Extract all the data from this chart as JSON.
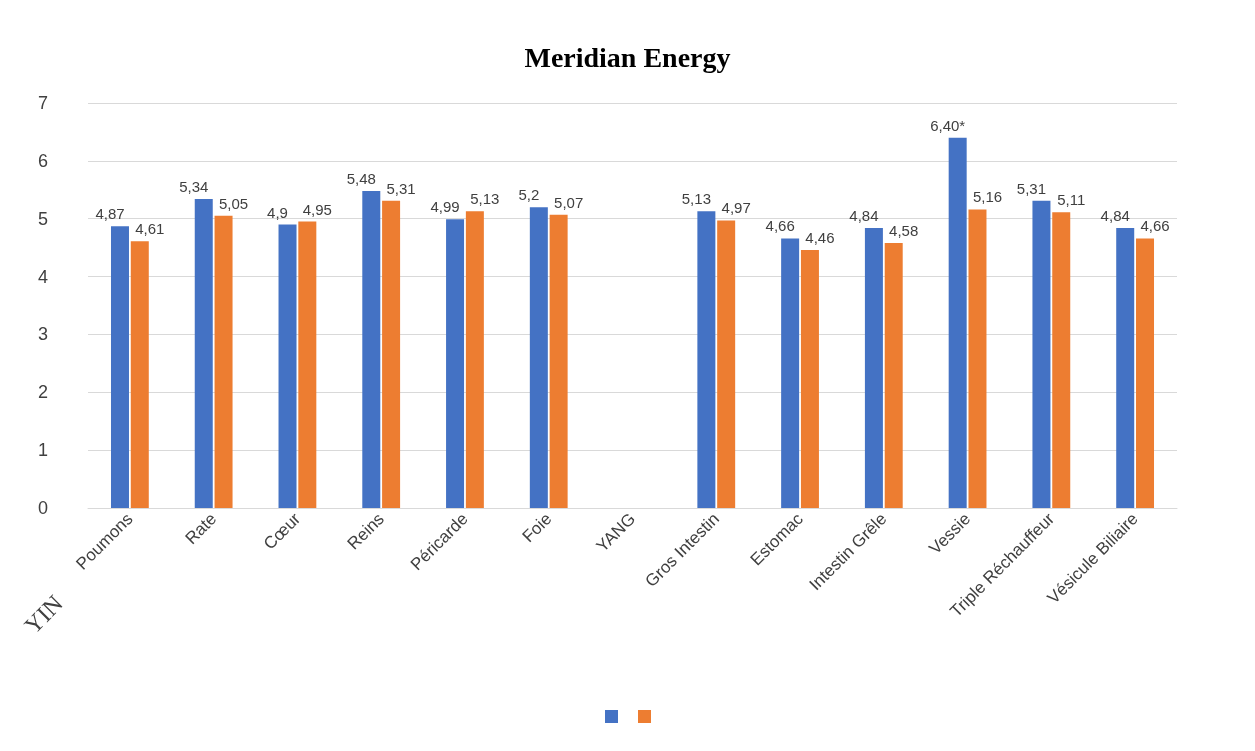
{
  "chart_data": {
    "type": "bar",
    "title": "Meridian Energy",
    "categories": [
      "Poumons",
      "Rate",
      "Cœur",
      "Reins",
      "Péricarde",
      "Foie",
      "YANG",
      "Gros Intestin",
      "Estomac",
      "Intestin Grêle",
      "Vessie",
      "Triple Réchauffeur",
      "Vésicule Biliaire"
    ],
    "series": [
      {
        "color": "#4472c4",
        "values": [
          4.87,
          5.34,
          4.9,
          5.48,
          4.99,
          5.2,
          null,
          5.13,
          4.66,
          4.84,
          6.4,
          5.31,
          4.84
        ],
        "value_labels": [
          "4,87",
          "5,34",
          "4,9",
          "5,48",
          "4,99",
          "5,2",
          null,
          "5,13",
          "4,66",
          "4,84",
          "6,40*",
          "5,31",
          "4,84"
        ]
      },
      {
        "color": "#ed7d31",
        "values": [
          4.61,
          5.05,
          4.95,
          5.31,
          5.13,
          5.07,
          null,
          4.97,
          4.46,
          4.58,
          5.16,
          5.11,
          4.66
        ],
        "value_labels": [
          "4,61",
          "5,05",
          "4,95",
          "5,31",
          "5,13",
          "5,07",
          null,
          "4,97",
          "4,46",
          "4,58",
          "5,16",
          "5,11",
          "4,66"
        ]
      }
    ],
    "annotations": [
      "YIN"
    ],
    "ylim": [
      0,
      7
    ],
    "yticks": [
      0,
      1,
      2,
      3,
      4,
      5,
      6,
      7
    ],
    "grid": "y"
  }
}
